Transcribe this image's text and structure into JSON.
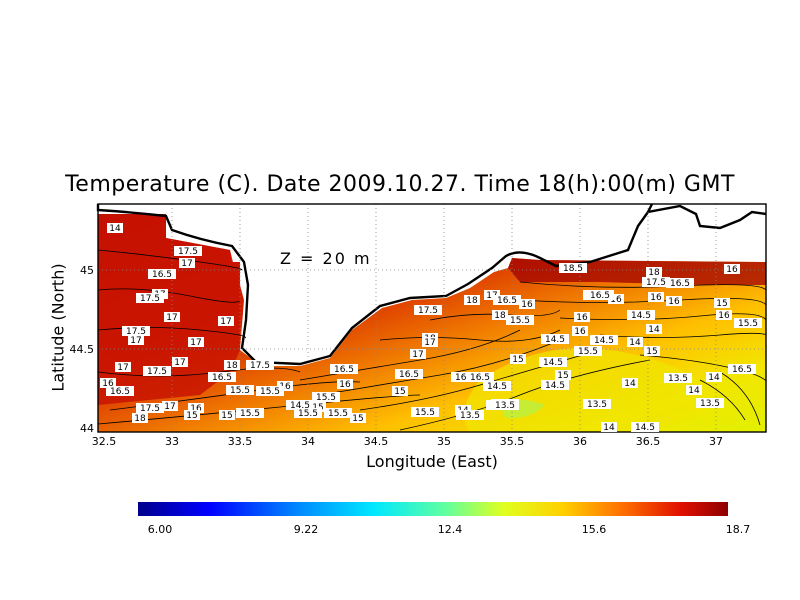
{
  "map": {
    "title": "Temperature (C). Date 2009.10.27. Time 18(h):00(m) GMT",
    "annotation": "Z = 20 m",
    "xlabel": "Longitude (East)",
    "ylabel": "Latitude (North)",
    "x_ticks": [
      "32.5",
      "33",
      "33.5",
      "34",
      "34.5",
      "35",
      "35.5",
      "36",
      "36.5",
      "37"
    ],
    "y_ticks": [
      "44",
      "44.5",
      "45"
    ],
    "colorbar": {
      "labels": [
        "6.00",
        "9.22",
        "12.4",
        "15.6",
        "18.7"
      ],
      "min": 6.0,
      "max": 18.7
    },
    "contour_labels": [
      "18",
      "17.5",
      "17",
      "16.5",
      "17",
      "17.5",
      "17",
      "17.5",
      "17",
      "17",
      "17",
      "17.5",
      "16",
      "16.5",
      "17.5",
      "17",
      "18",
      "16",
      "15.5",
      "17",
      "16.5",
      "18",
      "15",
      "15",
      "15.5",
      "16",
      "15.5",
      "14.5",
      "15.5",
      "15",
      "15.5",
      "15",
      "17",
      "16.5",
      "16",
      "15.5",
      "17.5",
      "18",
      "17.5",
      "17",
      "16.5",
      "17",
      "16.5",
      "16.5",
      "15",
      "15.5",
      "14.5",
      "14.5",
      "18",
      "18",
      "17",
      "16.5",
      "16",
      "15",
      "15.5",
      "14.5",
      "14",
      "14.5",
      "14.5",
      "13.5",
      "18.5",
      "16",
      "16.5",
      "16",
      "15.5",
      "16",
      "15",
      "16",
      "14.5",
      "14",
      "13.5",
      "13.5",
      "14",
      "16.5",
      "16",
      "18",
      "17.5",
      "16.5",
      "15",
      "14.5",
      "14",
      "14",
      "13.5",
      "14",
      "14",
      "13.5",
      "16",
      "15",
      "15.5",
      "16",
      "16.5",
      "14.5",
      "14.5",
      "14"
    ]
  }
}
